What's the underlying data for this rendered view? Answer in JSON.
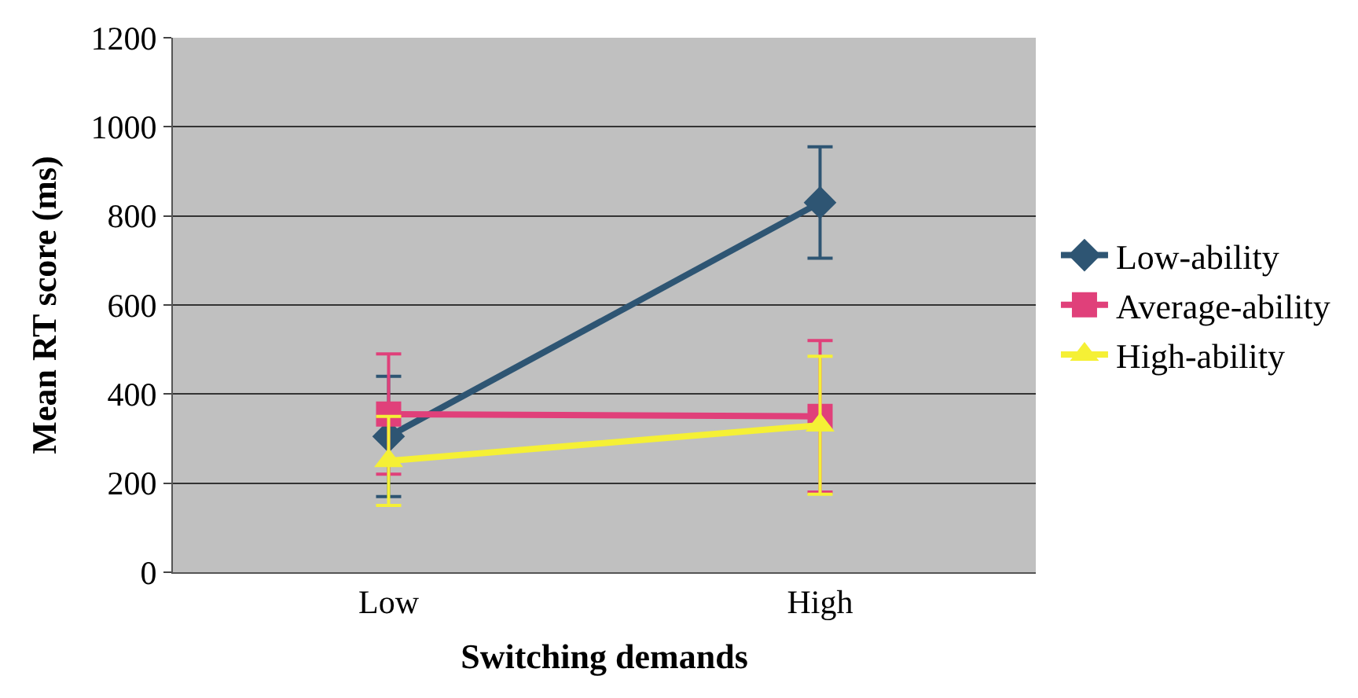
{
  "chart_data": {
    "type": "line",
    "xlabel": "Switching demands",
    "ylabel": "Mean RT score (ms)",
    "categories": [
      "Low",
      "High"
    ],
    "series": [
      {
        "name": "Low-ability",
        "color": "#2e5573",
        "marker": "diamond",
        "values": [
          305,
          830
        ],
        "errors": [
          135,
          125
        ]
      },
      {
        "name": "Average-ability",
        "color": "#e0407a",
        "marker": "square",
        "values": [
          355,
          350
        ],
        "errors": [
          135,
          170
        ]
      },
      {
        "name": "High-ability",
        "color": "#f5f035",
        "marker": "triangle",
        "values": [
          250,
          330
        ],
        "errors": [
          100,
          155
        ]
      }
    ],
    "ylim": [
      0,
      1200
    ],
    "yticks": [
      0,
      200,
      400,
      600,
      800,
      1000,
      1200
    ],
    "grid": "y",
    "legend": "right"
  }
}
